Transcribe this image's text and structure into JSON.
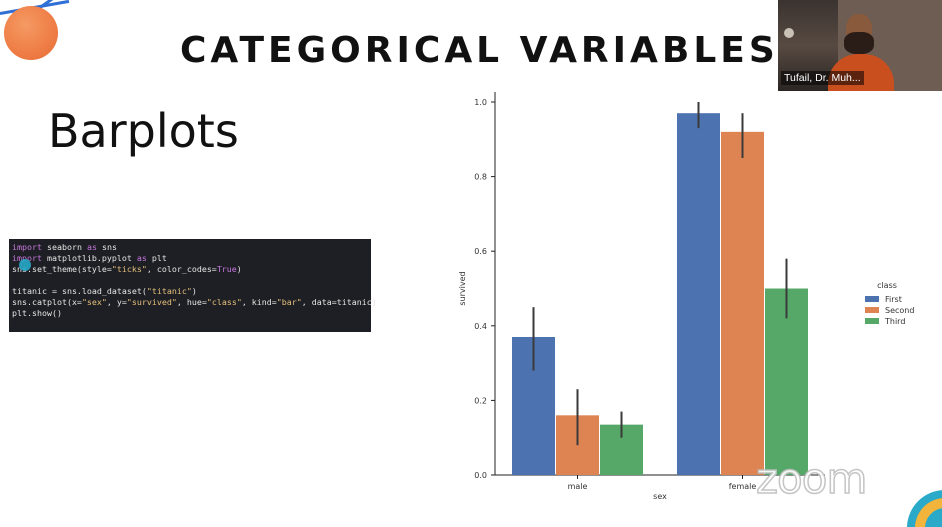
{
  "slide": {
    "title": "CATEGORICAL VARIABLES",
    "heading": "Barplots"
  },
  "code": {
    "lines": [
      {
        "parts": [
          {
            "t": "import",
            "c": "kw"
          },
          {
            "t": " seaborn ",
            "c": ""
          },
          {
            "t": "as",
            "c": "kw"
          },
          {
            "t": " sns",
            "c": ""
          }
        ]
      },
      {
        "parts": [
          {
            "t": "import",
            "c": "kw"
          },
          {
            "t": " matplotlib.pyplot ",
            "c": ""
          },
          {
            "t": "as",
            "c": "kw"
          },
          {
            "t": " plt",
            "c": ""
          }
        ]
      },
      {
        "parts": [
          {
            "t": "sns.set_theme(style=",
            "c": ""
          },
          {
            "t": "\"ticks\"",
            "c": "str"
          },
          {
            "t": ", color_codes=",
            "c": ""
          },
          {
            "t": "True",
            "c": "bool"
          },
          {
            "t": ")",
            "c": ""
          }
        ]
      },
      {
        "parts": [
          {
            "t": "",
            "c": ""
          }
        ]
      },
      {
        "parts": [
          {
            "t": "titanic = sns.load_dataset(",
            "c": ""
          },
          {
            "t": "\"titanic\"",
            "c": "str"
          },
          {
            "t": ")",
            "c": ""
          }
        ]
      },
      {
        "parts": [
          {
            "t": "sns.catplot(x=",
            "c": ""
          },
          {
            "t": "\"sex\"",
            "c": "str"
          },
          {
            "t": ", y=",
            "c": ""
          },
          {
            "t": "\"survived\"",
            "c": "str"
          },
          {
            "t": ", hue=",
            "c": ""
          },
          {
            "t": "\"class\"",
            "c": "str"
          },
          {
            "t": ", kind=",
            "c": ""
          },
          {
            "t": "\"bar\"",
            "c": "str"
          },
          {
            "t": ", data=titanic)",
            "c": ""
          }
        ]
      },
      {
        "parts": [
          {
            "t": "plt.show()",
            "c": ""
          }
        ]
      }
    ]
  },
  "chart_data": {
    "type": "bar",
    "categories": [
      "male",
      "female"
    ],
    "xlabel": "sex",
    "ylabel": "survived",
    "ylim": [
      0,
      1.0
    ],
    "yticks": [
      "0.0",
      "0.2",
      "0.4",
      "0.6",
      "0.8",
      "1.0"
    ],
    "legend_title": "class",
    "legend_position": "right",
    "series": [
      {
        "name": "First",
        "color": "#4c72b0",
        "values": [
          0.37,
          0.97
        ],
        "err_low": [
          0.28,
          0.93
        ],
        "err_high": [
          0.45,
          1.0
        ]
      },
      {
        "name": "Second",
        "color": "#dd8452",
        "values": [
          0.16,
          0.92
        ],
        "err_low": [
          0.08,
          0.85
        ],
        "err_high": [
          0.23,
          0.97
        ]
      },
      {
        "name": "Third",
        "color": "#55a868",
        "values": [
          0.135,
          0.5
        ],
        "err_low": [
          0.1,
          0.42
        ],
        "err_high": [
          0.17,
          0.58
        ]
      }
    ]
  },
  "webcam": {
    "participant_name": "Tufail, Dr. Muh..."
  },
  "watermark": {
    "text": "zoom"
  }
}
